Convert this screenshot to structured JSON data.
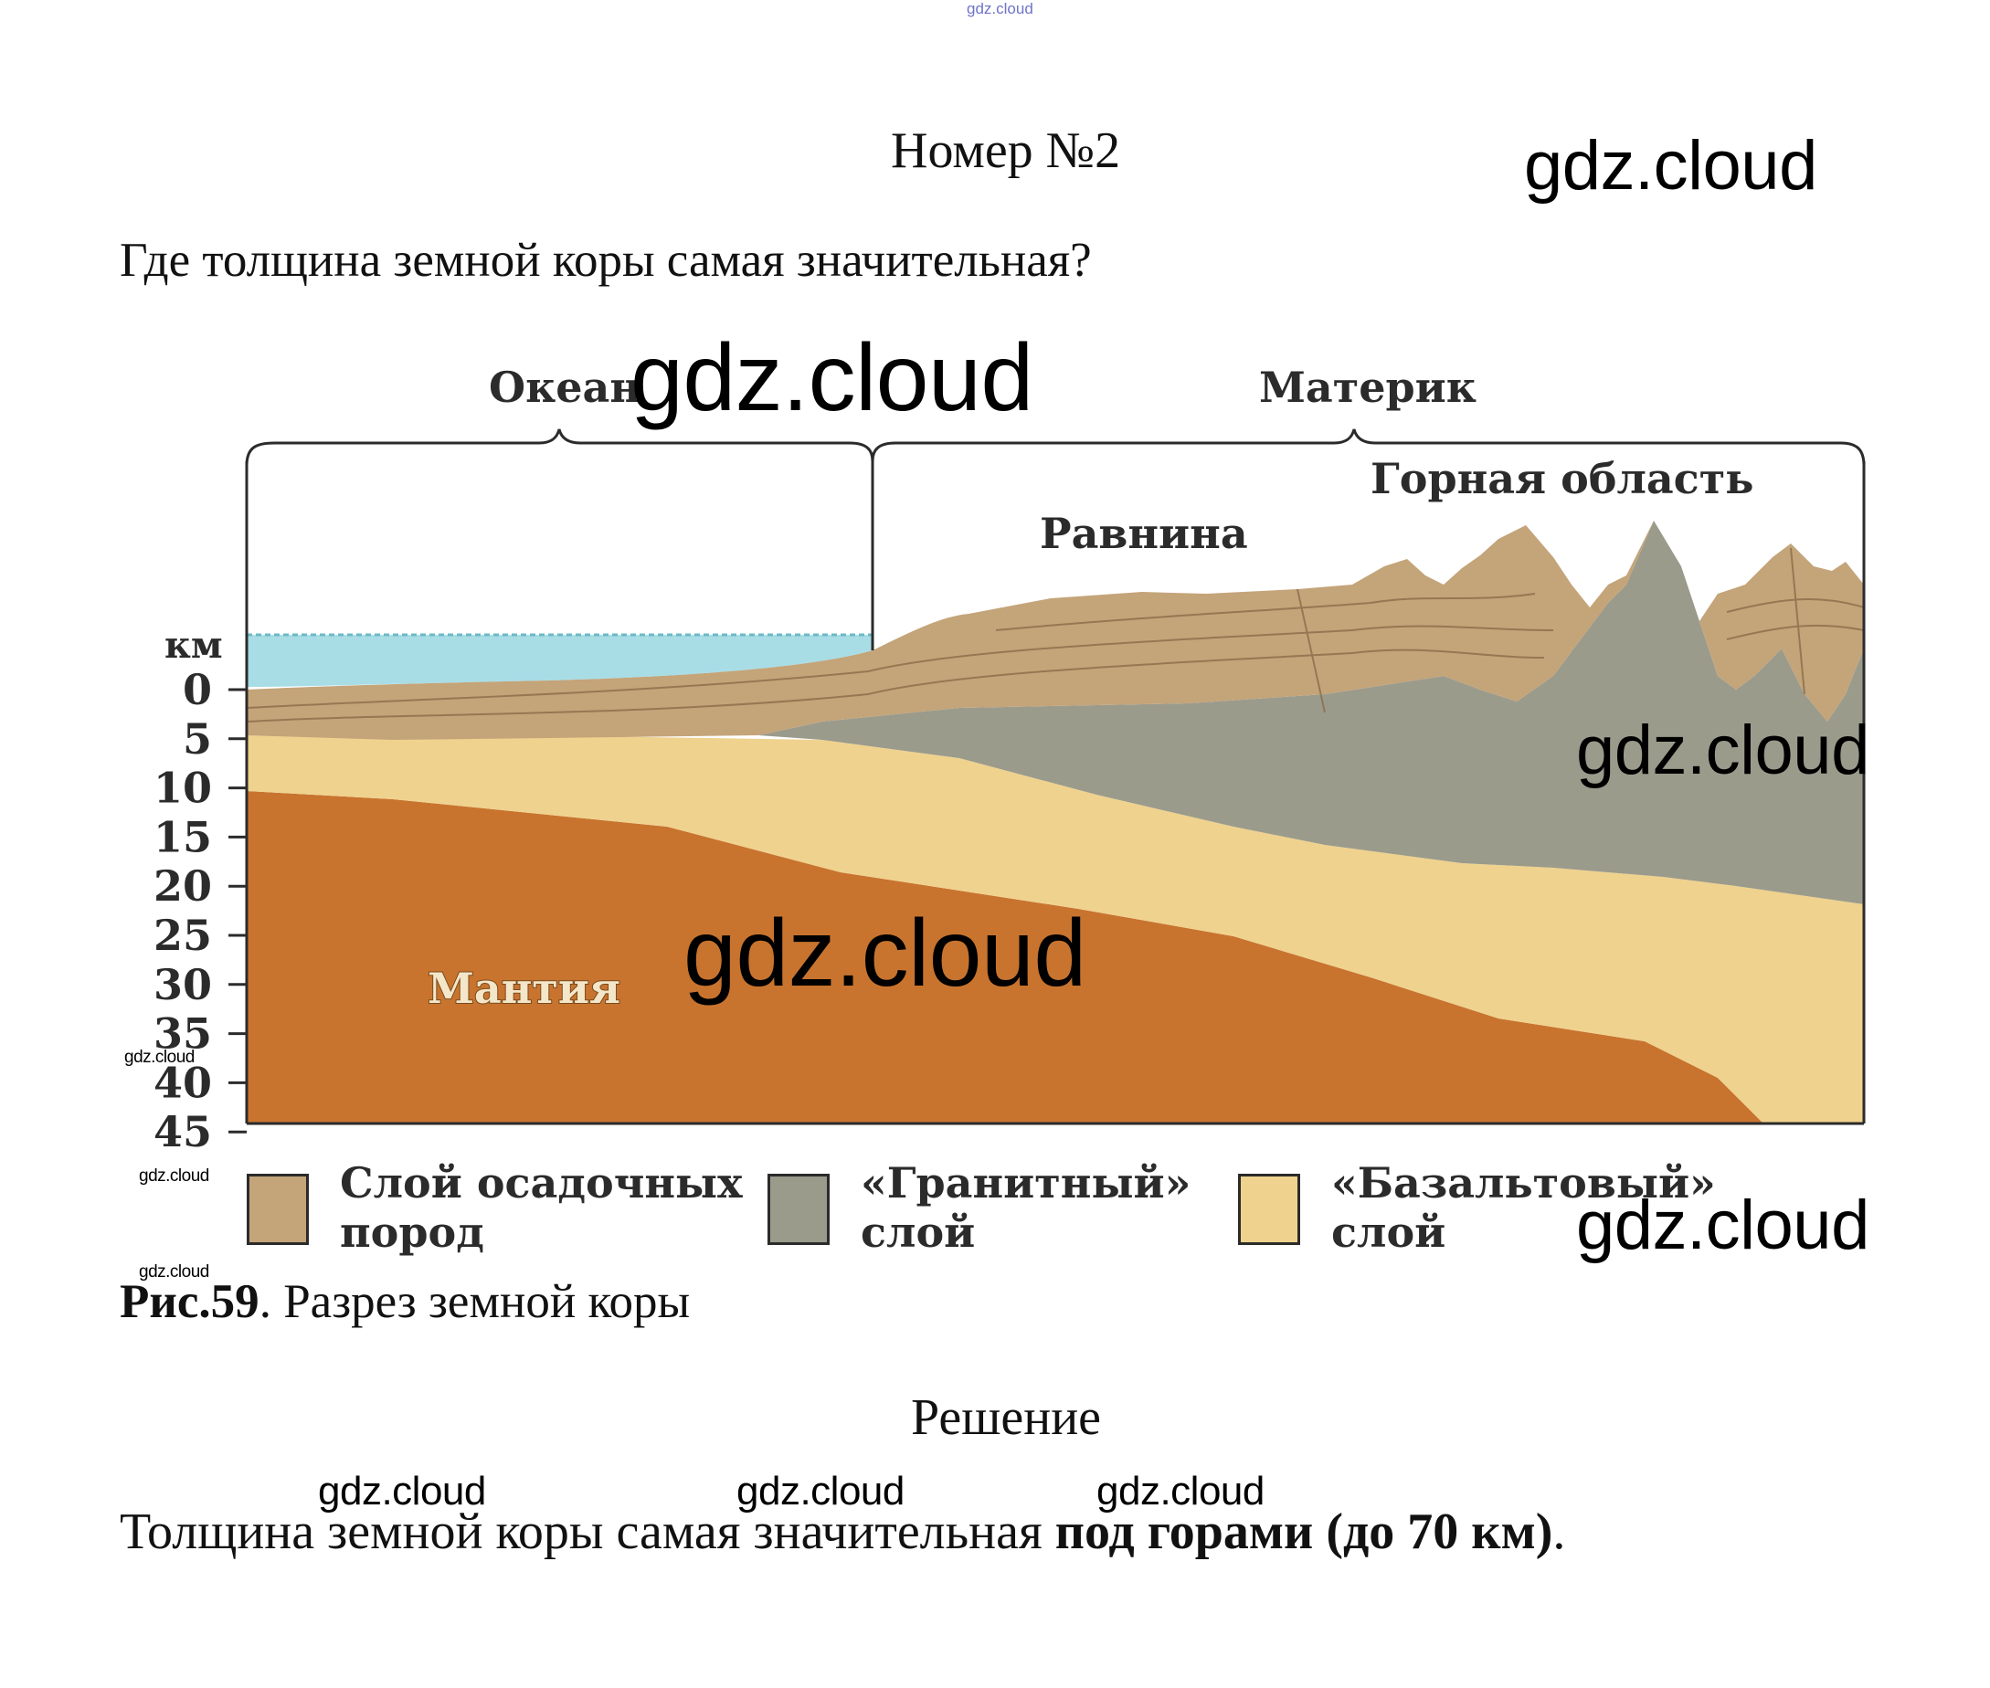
{
  "header": {
    "tiny_watermark": "gdz.cloud",
    "title": "Номер №2",
    "watermark": "gdz.cloud"
  },
  "question": "Где толщина земной коры самая значительная?",
  "figure": {
    "labels": {
      "ocean": "Океан",
      "continent": "Материк",
      "mountains": "Горная область",
      "plain": "Равнина",
      "mantle": "Мантия",
      "km": "км"
    },
    "depth_ticks": [
      "0",
      "5",
      "10",
      "15",
      "20",
      "25",
      "30",
      "35",
      "40",
      "45"
    ],
    "legend": [
      {
        "line1": "Слой осадочных",
        "line2": "пород",
        "color": "#c4a479"
      },
      {
        "line1": "«Гранитный»",
        "line2": "слой",
        "color": "#9b9b8c"
      },
      {
        "line1": "«Базальтовый»",
        "line2": "слой",
        "color": "#efd28e"
      }
    ],
    "colors": {
      "water": "#a8dde6",
      "sediment": "#c4a479",
      "granite": "#9b9b8c",
      "basalt": "#efd28e",
      "mantle": "#c8742f"
    },
    "caption_bold": "Рис.59",
    "caption_rest": ". Разрез земной коры",
    "watermarks": {
      "over_ocean": "gdz.cloud",
      "right_middle": "gdz.cloud",
      "center": "gdz.cloud",
      "small_left_1": "gdz.cloud",
      "small_left_2": "gdz.cloud",
      "small_left_3": "gdz.cloud",
      "right_legend": "gdz.cloud"
    }
  },
  "solution": {
    "heading": "Решение",
    "watermarks": [
      "gdz.cloud",
      "gdz.cloud",
      "gdz.cloud"
    ],
    "answer_plain": "Толщина земной коры самая значительная ",
    "answer_bold": "под горами (до 70 км)",
    "answer_end": "."
  }
}
